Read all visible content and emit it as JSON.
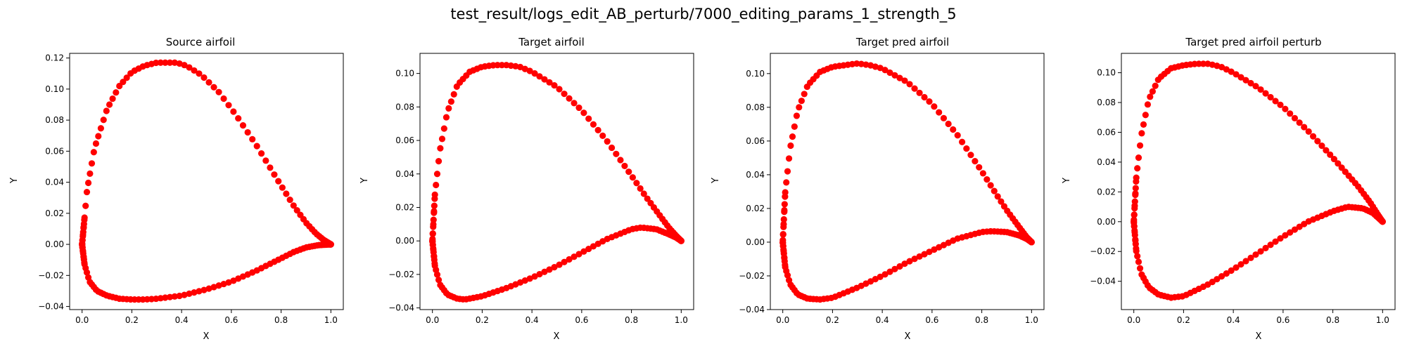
{
  "figure_title": "test_result/logs_edit_AB_perturb/7000_editing_params_1_strength_5",
  "marker_color": "#ff0000",
  "chart_data": [
    {
      "type": "scatter",
      "title": "Source airfoil",
      "xlabel": "X",
      "ylabel": "Y",
      "xlim": [
        -0.05,
        1.05
      ],
      "ylim": [
        -0.042,
        0.123
      ],
      "xticks": [
        0.0,
        0.2,
        0.4,
        0.6,
        0.8,
        1.0
      ],
      "yticks": [
        -0.04,
        -0.02,
        0.0,
        0.02,
        0.04,
        0.06,
        0.08,
        0.1,
        0.12
      ],
      "grid": false,
      "upper": {
        "x": [
          0,
          0.02,
          0.05,
          0.1,
          0.15,
          0.2,
          0.25,
          0.3,
          0.35,
          0.38,
          0.42,
          0.48,
          0.55,
          0.62,
          0.7,
          0.78,
          0.85,
          0.9,
          0.94,
          0.97,
          0.99,
          1.0
        ],
        "y": [
          0,
          0.035,
          0.062,
          0.087,
          0.102,
          0.111,
          0.115,
          0.117,
          0.117,
          0.117,
          0.115,
          0.109,
          0.098,
          0.083,
          0.064,
          0.043,
          0.025,
          0.014,
          0.007,
          0.003,
          0.001,
          0
        ]
      },
      "lower": {
        "x": [
          0,
          0.01,
          0.03,
          0.06,
          0.1,
          0.15,
          0.2,
          0.25,
          0.3,
          0.4,
          0.5,
          0.6,
          0.7,
          0.8,
          0.85,
          0.9,
          0.95,
          0.98,
          1.0
        ],
        "y": [
          0,
          -0.013,
          -0.024,
          -0.03,
          -0.033,
          -0.035,
          -0.0355,
          -0.0355,
          -0.035,
          -0.033,
          -0.029,
          -0.024,
          -0.017,
          -0.009,
          -0.005,
          -0.002,
          -0.0005,
          -0.0002,
          0
        ]
      },
      "points": {
        "upper": 80,
        "lower": 80
      }
    },
    {
      "type": "scatter",
      "title": "Target airfoil",
      "xlabel": "X",
      "ylabel": "Y",
      "xlim": [
        -0.05,
        1.05
      ],
      "ylim": [
        -0.041,
        0.112
      ],
      "xticks": [
        0.0,
        0.2,
        0.4,
        0.6,
        0.8,
        1.0
      ],
      "yticks": [
        -0.04,
        -0.02,
        0.0,
        0.02,
        0.04,
        0.06,
        0.08,
        0.1
      ],
      "grid": false,
      "upper": {
        "x": [
          0,
          0.01,
          0.03,
          0.06,
          0.1,
          0.15,
          0.2,
          0.25,
          0.3,
          0.35,
          0.4,
          0.5,
          0.6,
          0.7,
          0.8,
          0.86,
          0.9,
          0.95,
          0.98,
          1.0
        ],
        "y": [
          0,
          0.028,
          0.054,
          0.077,
          0.093,
          0.101,
          0.104,
          0.105,
          0.105,
          0.104,
          0.101,
          0.092,
          0.078,
          0.06,
          0.039,
          0.026,
          0.018,
          0.008,
          0.003,
          0
        ]
      },
      "lower": {
        "x": [
          0,
          0.01,
          0.03,
          0.06,
          0.1,
          0.13,
          0.2,
          0.3,
          0.4,
          0.5,
          0.6,
          0.7,
          0.8,
          0.84,
          0.9,
          0.95,
          0.98,
          1.0
        ],
        "y": [
          0,
          -0.015,
          -0.026,
          -0.032,
          -0.0345,
          -0.035,
          -0.033,
          -0.028,
          -0.022,
          -0.015,
          -0.007,
          0.001,
          0.007,
          0.008,
          0.007,
          0.004,
          0.002,
          0
        ]
      },
      "points": {
        "upper": 80,
        "lower": 80
      }
    },
    {
      "type": "scatter",
      "title": "Target pred airfoil",
      "xlabel": "X",
      "ylabel": "Y",
      "xlim": [
        -0.05,
        1.05
      ],
      "ylim": [
        -0.04,
        0.112
      ],
      "xticks": [
        0.0,
        0.2,
        0.4,
        0.6,
        0.8,
        1.0
      ],
      "yticks": [
        -0.04,
        -0.02,
        0.0,
        0.02,
        0.04,
        0.06,
        0.08,
        0.1
      ],
      "grid": false,
      "upper": {
        "x": [
          0,
          0.01,
          0.03,
          0.06,
          0.1,
          0.15,
          0.2,
          0.25,
          0.3,
          0.35,
          0.4,
          0.5,
          0.6,
          0.7,
          0.8,
          0.86,
          0.9,
          0.95,
          0.98,
          1.0
        ],
        "y": [
          0,
          0.03,
          0.056,
          0.078,
          0.093,
          0.101,
          0.104,
          0.105,
          0.106,
          0.105,
          0.103,
          0.095,
          0.082,
          0.064,
          0.042,
          0.028,
          0.019,
          0.009,
          0.003,
          0
        ]
      },
      "lower": {
        "x": [
          0,
          0.01,
          0.03,
          0.06,
          0.1,
          0.15,
          0.2,
          0.3,
          0.4,
          0.5,
          0.6,
          0.7,
          0.8,
          0.84,
          0.9,
          0.95,
          0.98,
          1.0
        ],
        "y": [
          0,
          -0.015,
          -0.025,
          -0.031,
          -0.0335,
          -0.034,
          -0.033,
          -0.027,
          -0.02,
          -0.012,
          -0.005,
          0.002,
          0.006,
          0.0065,
          0.006,
          0.004,
          0.002,
          0
        ]
      },
      "points": {
        "upper": 80,
        "lower": 80
      }
    },
    {
      "type": "scatter",
      "title": "Target pred airfoil perturb",
      "xlabel": "X",
      "ylabel": "Y",
      "xlim": [
        -0.05,
        1.05
      ],
      "ylim": [
        -0.059,
        0.113
      ],
      "xticks": [
        0.0,
        0.2,
        0.4,
        0.6,
        0.8,
        1.0
      ],
      "yticks": [
        -0.04,
        -0.02,
        0.0,
        0.02,
        0.04,
        0.06,
        0.08,
        0.1
      ],
      "grid": false,
      "upper": {
        "x": [
          0,
          0.01,
          0.03,
          0.06,
          0.1,
          0.15,
          0.2,
          0.25,
          0.3,
          0.35,
          0.4,
          0.5,
          0.6,
          0.7,
          0.8,
          0.9,
          0.95,
          0.98,
          1.0
        ],
        "y": [
          0,
          0.03,
          0.058,
          0.082,
          0.096,
          0.103,
          0.105,
          0.106,
          0.106,
          0.104,
          0.1,
          0.09,
          0.077,
          0.061,
          0.043,
          0.024,
          0.013,
          0.005,
          0
        ]
      },
      "lower": {
        "x": [
          0,
          0.01,
          0.03,
          0.06,
          0.1,
          0.15,
          0.2,
          0.3,
          0.4,
          0.5,
          0.6,
          0.7,
          0.8,
          0.86,
          0.92,
          0.96,
          0.98,
          1.0
        ],
        "y": [
          0,
          -0.02,
          -0.035,
          -0.044,
          -0.049,
          -0.051,
          -0.05,
          -0.042,
          -0.032,
          -0.021,
          -0.01,
          0.0,
          0.007,
          0.01,
          0.009,
          0.006,
          0.003,
          0
        ]
      },
      "points": {
        "upper": 80,
        "lower": 80
      }
    }
  ]
}
